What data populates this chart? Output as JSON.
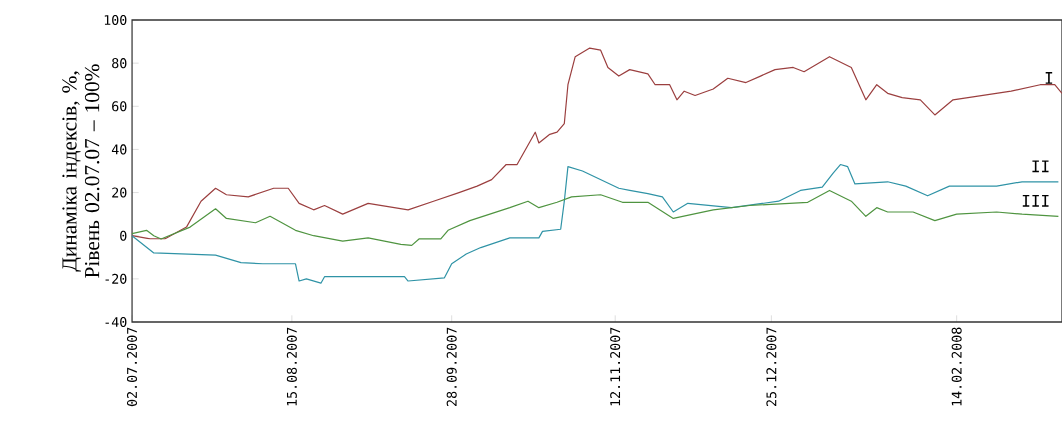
{
  "chart_data": {
    "type": "line",
    "ylabel": "Динаміка індексів, %, Рівень 02.07.07 – 100%",
    "xlim": [
      "2007-07-02",
      "2008-03-14"
    ],
    "ylim": [
      -40,
      100
    ],
    "xticks": [
      {
        "value": "2007-07-02",
        "label": "02.07.2007"
      },
      {
        "value": "2007-08-15",
        "label": "15.08.2007"
      },
      {
        "value": "2007-09-28",
        "label": "28.09.2007"
      },
      {
        "value": "2007-11-12",
        "label": "12.11.2007"
      },
      {
        "value": "2007-12-25",
        "label": "25.12.2007"
      },
      {
        "value": "2008-02-14",
        "label": "14.02.2008"
      }
    ],
    "yticks": [
      -40,
      -20,
      0,
      20,
      40,
      60,
      80,
      100
    ],
    "grid": false,
    "series": [
      {
        "name": "I",
        "color": "#9b3f3f",
        "x": [
          "2007-07-02",
          "2007-07-07",
          "2007-07-11",
          "2007-07-17",
          "2007-07-21",
          "2007-07-25",
          "2007-07-28",
          "2007-08-03",
          "2007-08-10",
          "2007-08-14",
          "2007-08-17",
          "2007-08-21",
          "2007-08-24",
          "2007-08-29",
          "2007-09-05",
          "2007-09-16",
          "2007-09-23",
          "2007-09-30",
          "2007-10-05",
          "2007-10-09",
          "2007-10-13",
          "2007-10-16",
          "2007-10-21",
          "2007-10-22",
          "2007-10-25",
          "2007-10-27",
          "2007-10-29",
          "2007-10-30",
          "2007-11-01",
          "2007-11-05",
          "2007-11-08",
          "2007-11-10",
          "2007-11-13",
          "2007-11-16",
          "2007-11-21",
          "2007-11-23",
          "2007-11-27",
          "2007-11-29",
          "2007-12-01",
          "2007-12-04",
          "2007-12-09",
          "2007-12-13",
          "2007-12-18",
          "2007-12-22",
          "2007-12-26",
          "2007-12-31",
          "2008-01-03",
          "2008-01-10",
          "2008-01-16",
          "2008-01-20",
          "2008-01-23",
          "2008-01-26",
          "2008-01-30",
          "2008-02-04",
          "2008-02-08",
          "2008-02-13",
          "2008-02-21",
          "2008-02-29",
          "2008-03-08",
          "2008-03-12",
          "2008-03-14"
        ],
        "values": [
          0,
          -1.5,
          -1.5,
          4,
          16,
          22,
          19,
          18,
          22,
          22,
          15,
          12,
          14,
          10,
          15,
          12,
          16,
          20,
          23,
          26,
          33,
          33,
          48,
          43,
          47,
          48,
          52,
          70,
          83,
          87,
          86,
          78,
          74,
          77,
          75,
          70,
          70,
          63,
          67,
          65,
          68,
          73,
          71,
          74,
          77,
          78,
          76,
          83,
          78,
          63,
          70,
          66,
          64,
          63,
          56,
          63,
          65,
          67,
          70,
          70,
          66
        ]
      },
      {
        "name": "II",
        "color": "#2f93a6",
        "x": [
          "2007-07-02",
          "2007-07-08",
          "2007-07-25",
          "2007-08-01",
          "2007-08-07",
          "2007-08-16",
          "2007-08-17",
          "2007-08-19",
          "2007-08-23",
          "2007-08-24",
          "2007-09-15",
          "2007-09-16",
          "2007-09-26",
          "2007-09-28",
          "2007-10-02",
          "2007-10-06",
          "2007-10-14",
          "2007-10-22",
          "2007-10-23",
          "2007-10-28",
          "2007-10-29",
          "2007-10-30",
          "2007-11-03",
          "2007-11-13",
          "2007-11-16",
          "2007-11-21",
          "2007-11-25",
          "2007-11-28",
          "2007-12-02",
          "2007-12-14",
          "2007-12-27",
          "2008-01-02",
          "2008-01-08",
          "2008-01-11",
          "2008-01-13",
          "2008-01-15",
          "2008-01-17",
          "2008-01-26",
          "2008-01-31",
          "2008-02-06",
          "2008-02-12",
          "2008-02-25",
          "2008-03-03",
          "2008-03-13"
        ],
        "values": [
          0,
          -8,
          -9,
          -12.5,
          -13,
          -13,
          -21,
          -20,
          -22,
          -19,
          -19,
          -21,
          -19.5,
          -13,
          -8.5,
          -5.5,
          -1,
          -1,
          2,
          3,
          16,
          32,
          30,
          22,
          21,
          19.5,
          18,
          11,
          15,
          13,
          16,
          21,
          22.5,
          29,
          33,
          32,
          24,
          25,
          23,
          18.5,
          23,
          23,
          25,
          25
        ]
      },
      {
        "name": "III",
        "color": "#4f9440",
        "x": [
          "2007-07-02",
          "2007-07-06",
          "2007-07-08",
          "2007-07-10",
          "2007-07-18",
          "2007-07-25",
          "2007-07-28",
          "2007-08-05",
          "2007-08-09",
          "2007-08-16",
          "2007-08-21",
          "2007-08-29",
          "2007-09-05",
          "2007-09-14",
          "2007-09-17",
          "2007-09-19",
          "2007-09-25",
          "2007-09-27",
          "2007-10-03",
          "2007-10-14",
          "2007-10-19",
          "2007-10-22",
          "2007-10-27",
          "2007-10-31",
          "2007-11-08",
          "2007-11-14",
          "2007-11-21",
          "2007-11-28",
          "2007-12-09",
          "2007-12-19",
          "2008-01-04",
          "2008-01-10",
          "2008-01-16",
          "2008-01-20",
          "2008-01-23",
          "2008-01-26",
          "2008-02-02",
          "2008-02-08",
          "2008-02-14",
          "2008-02-25",
          "2008-03-03",
          "2008-03-13"
        ],
        "values": [
          1,
          2.5,
          0,
          -1.5,
          4,
          12.5,
          8,
          6,
          9,
          2.5,
          0,
          -2.5,
          -1,
          -4,
          -4.5,
          -1.5,
          -1.5,
          2.5,
          7,
          13,
          16,
          13,
          15.5,
          18,
          19,
          15.5,
          15.5,
          8,
          12,
          14,
          15.5,
          21,
          16,
          9,
          13,
          11,
          11,
          7,
          10,
          11,
          10,
          9
        ]
      }
    ]
  }
}
